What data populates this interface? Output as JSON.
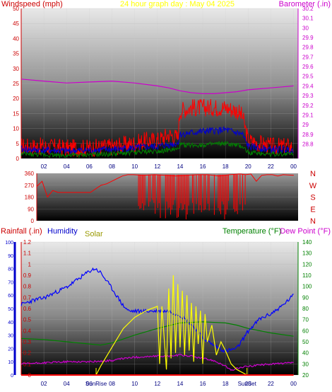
{
  "header": {
    "title": "24 hour graph day : May 04 2025",
    "left_label": "Windspeed (mph)",
    "right_label": "Barometer (.in)"
  },
  "colors": {
    "wind_speed": "#ff0000",
    "wind_avg": "#0000cc",
    "wind_min": "#008000",
    "barometer": "#cc00cc",
    "direction": "#ff0000",
    "rain": "#ff0000",
    "humidity": "#0000ff",
    "solar": "#ffff00",
    "temperature": "#008000",
    "dew_point": "#cc00cc",
    "title": "#ffff00",
    "axis_windspeed": "#cc0000",
    "axis_barometer": "#cc00cc",
    "axis_rain": "#0000cc",
    "axis_temperature": "#008000"
  },
  "chart_data": [
    {
      "type": "line",
      "title": "24 hour graph day : May 04 2025",
      "ylabel": "Windspeed (mph)",
      "y2label": "Barometer (.in)",
      "ylim": [
        0,
        50
      ],
      "y2lim": [
        28.65,
        30.2
      ],
      "yticks": [
        0,
        5,
        10,
        15,
        20,
        25,
        30,
        35,
        40,
        45,
        50
      ],
      "y2ticks": [
        "28.8",
        "28.9",
        "29",
        "29.1",
        "29.2",
        "29.3",
        "29.4",
        "29.5",
        "29.6",
        "29.7",
        "29.8",
        "29.9",
        "30",
        "30.1",
        "30.2"
      ],
      "xlim": [
        0,
        24.4
      ],
      "xticks": [
        "02",
        "04",
        "06",
        "08",
        "10",
        "12",
        "14",
        "16",
        "18",
        "20",
        "22",
        "00"
      ],
      "series": [
        {
          "key": "gust",
          "x": [
            0,
            2,
            4,
            6,
            8,
            10,
            11,
            12,
            13,
            13.8,
            14,
            15,
            16,
            17,
            18,
            19,
            19.5,
            20,
            21,
            22,
            24
          ],
          "values": [
            4,
            4,
            3.5,
            3.5,
            4,
            5,
            6,
            6,
            8,
            7,
            16,
            17,
            17,
            17,
            17,
            16,
            14,
            6,
            5,
            4,
            4
          ]
        },
        {
          "key": "avg",
          "x": [
            0,
            4,
            8,
            10,
            12,
            13.8,
            14,
            16,
            18,
            19.5,
            20,
            22,
            24
          ],
          "values": [
            3,
            2.5,
            3,
            3.5,
            4,
            5,
            8,
            9,
            9.5,
            8,
            4,
            3,
            3
          ]
        },
        {
          "key": "min",
          "x": [
            0,
            4,
            8,
            10,
            12,
            13.8,
            14,
            16,
            18,
            19.5,
            20,
            22,
            24
          ],
          "values": [
            1.5,
            1,
            1.5,
            2,
            2.5,
            3,
            4.5,
            4.5,
            5,
            4,
            2,
            1.5,
            1.5
          ]
        },
        {
          "key": "barometer",
          "x": [
            0,
            2,
            4,
            6,
            8,
            10,
            12,
            13,
            14,
            15,
            16,
            17,
            18,
            19,
            20,
            21,
            22,
            23,
            24
          ],
          "values": [
            29.47,
            29.45,
            29.43,
            29.44,
            29.45,
            29.43,
            29.4,
            29.38,
            29.35,
            29.33,
            29.32,
            29.32,
            29.33,
            29.34,
            29.36,
            29.37,
            29.38,
            29.39,
            29.4
          ]
        }
      ]
    },
    {
      "type": "scatter",
      "ylabel": "Wind direction",
      "ylim": [
        0,
        360
      ],
      "yticks": [
        0,
        90,
        180,
        270,
        360
      ],
      "compass_labels": [
        "N",
        "W",
        "S",
        "E",
        "N"
      ],
      "x": [
        0,
        0.5,
        1,
        1.5,
        2,
        3,
        4,
        5,
        6,
        6.5,
        7,
        8,
        8.5,
        9,
        10,
        11,
        12,
        13,
        14,
        15,
        16,
        17,
        18,
        19,
        19.5,
        20,
        20.5,
        21,
        21.5,
        22,
        22.5,
        23,
        24
      ],
      "values": [
        260,
        300,
        180,
        230,
        215,
        215,
        215,
        215,
        270,
        280,
        300,
        340,
        350,
        350,
        345,
        350,
        345,
        340,
        345,
        350,
        350,
        340,
        350,
        355,
        350,
        355,
        300,
        345,
        350,
        350,
        340,
        350,
        345
      ]
    },
    {
      "type": "line",
      "ylabel": "Rainfall (.in)",
      "y2label": "Temperature (°F)",
      "y3label": "Dew Point (°F)",
      "ylim": [
        0,
        1.2
      ],
      "yticks": [
        "0",
        "0.1",
        "0.2",
        "0.3",
        "0.4",
        "0.5",
        "0.6",
        "0.7",
        "0.8",
        "0.9",
        "1",
        "1.1",
        "1.2"
      ],
      "humidity_ylim": [
        0,
        100
      ],
      "humidity_yticks": [
        0,
        10,
        20,
        30,
        40,
        50,
        60,
        70,
        80,
        90,
        100
      ],
      "y2lim": [
        20,
        140
      ],
      "y2ticks": [
        20,
        30,
        40,
        50,
        60,
        70,
        80,
        90,
        100,
        110,
        120,
        130,
        140
      ],
      "xlim": [
        0,
        24.4
      ],
      "xticks": [
        "02",
        "04",
        "06",
        "08",
        "10",
        "12",
        "14",
        "16",
        "18",
        "20",
        "22",
        "00"
      ],
      "sunrise_hour": 6.6,
      "sunset_hour": 19.9,
      "sunrise_label": "SunRise",
      "sunset_label": "SunSet",
      "series": [
        {
          "key": "humidity",
          "name": "Humidity",
          "x": [
            0,
            1,
            2,
            3,
            4,
            5,
            6,
            6.5,
            7,
            8,
            9,
            9.5,
            10,
            11,
            12,
            13,
            14,
            15,
            16,
            17,
            18,
            19,
            20,
            21,
            22,
            23,
            24
          ],
          "values": [
            53,
            56,
            58,
            62,
            66,
            72,
            78,
            80,
            77,
            65,
            52,
            48,
            48,
            48,
            48,
            48,
            45,
            38,
            28,
            22,
            18,
            20,
            33,
            42,
            46,
            52,
            60
          ]
        },
        {
          "key": "temperature",
          "name": "Temperature (°F)",
          "x": [
            0,
            2,
            4,
            6,
            7,
            8,
            10,
            12,
            14,
            16,
            18,
            19,
            20,
            22,
            24
          ],
          "values": [
            53,
            52,
            50,
            48,
            47,
            49,
            56,
            62,
            67,
            68,
            67,
            65,
            62,
            58,
            55
          ]
        },
        {
          "key": "dew_point",
          "name": "Dew Point (°F)",
          "x": [
            0,
            2,
            4,
            6,
            8,
            9,
            10,
            12,
            13,
            14,
            15,
            16,
            17,
            18,
            18.5,
            19,
            20,
            22,
            24
          ],
          "values": [
            30,
            31,
            32,
            32,
            33,
            35,
            36,
            37,
            37,
            38,
            37,
            35,
            33,
            28,
            24,
            26,
            28,
            30,
            31
          ]
        },
        {
          "key": "solar",
          "name": "Solar",
          "x": [
            0,
            6.6,
            7,
            8,
            9,
            10,
            11,
            12,
            12.2,
            12.4,
            12.8,
            13,
            13.2,
            13.4,
            13.6,
            13.8,
            14,
            14.2,
            14.4,
            14.6,
            14.8,
            15,
            15.2,
            15.4,
            15.6,
            15.8,
            16,
            16.2,
            16.4,
            16.8,
            17.2,
            17.6,
            18,
            18.5,
            19,
            19.9,
            24
          ],
          "values": [
            0,
            0,
            0.08,
            0.25,
            0.42,
            0.52,
            0.58,
            0.62,
            0.1,
            0.62,
            0.05,
            0.78,
            0.15,
            0.9,
            0.2,
            0.82,
            0.25,
            0.76,
            0.18,
            0.72,
            0.22,
            0.65,
            0.12,
            0.62,
            0.28,
            0.58,
            0.1,
            0.55,
            0.3,
            0.45,
            0.18,
            0.3,
            0.22,
            0.1,
            0.05,
            0,
            0
          ]
        },
        {
          "key": "rain",
          "name": "Rainfall (.in)",
          "x": [
            0,
            24
          ],
          "values": [
            0,
            0
          ]
        }
      ]
    }
  ]
}
